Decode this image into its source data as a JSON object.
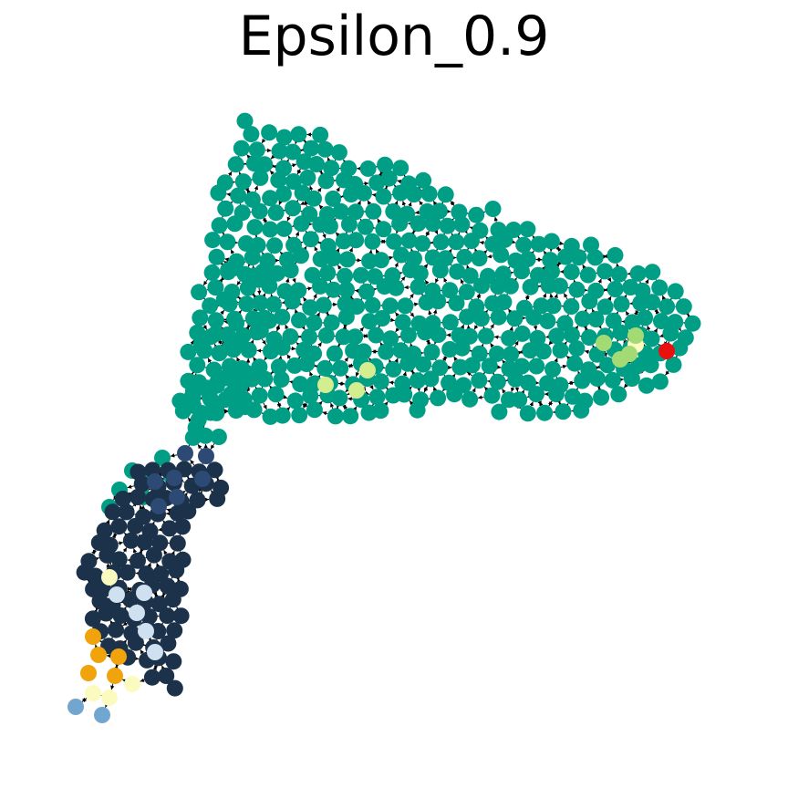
{
  "title": "Epsilon_0.9",
  "colors": {
    "teal": "#009e85",
    "navy": "#1b324a",
    "slate_blue": "#2d4a74",
    "pale_blue": "#cfe0f0",
    "steel_blue": "#72a6cf",
    "orange": "#f0a30a",
    "cream": "#fbfbc0",
    "lime": "#a3da74",
    "yellow_green": "#d4ee8f",
    "red": "#e8110f",
    "edge": "#000000"
  }
}
